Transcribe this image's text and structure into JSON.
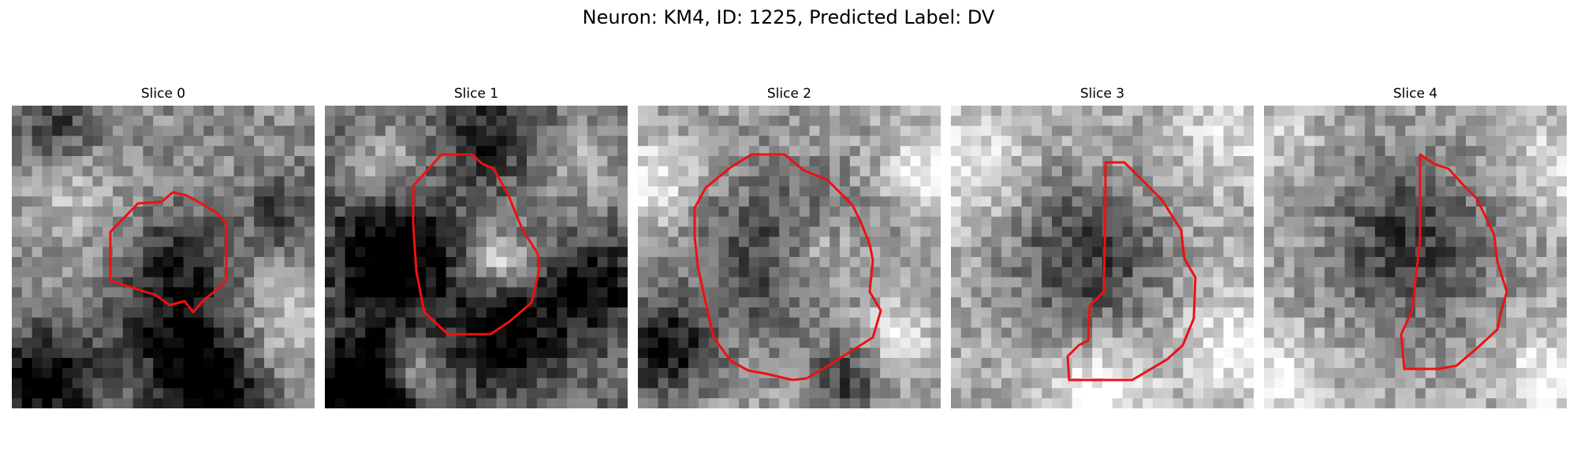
{
  "figure": {
    "title": "Neuron: KM4, ID: 1225, Predicted Label: DV",
    "colormap": "gray",
    "contour_color": "#ee1111"
  },
  "panels": [
    {
      "title": "Slice 0"
    },
    {
      "title": "Slice 1"
    },
    {
      "title": "Slice 2"
    },
    {
      "title": "Slice 3"
    },
    {
      "title": "Slice 4"
    }
  ]
}
